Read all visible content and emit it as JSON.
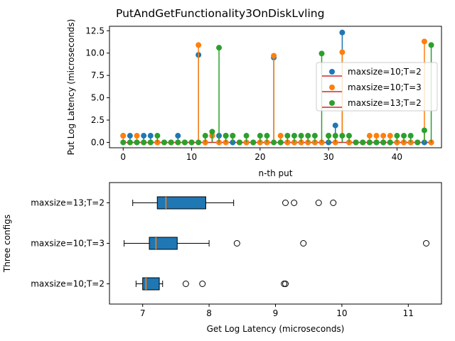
{
  "figure": {
    "title": "PutAndGetFunctionality3OnDiskLvling"
  },
  "colors": {
    "series": [
      "#1f77b4",
      "#ff7f0e",
      "#2ca02c"
    ],
    "baseline": "#d62728",
    "box_face": "#1f77b4",
    "median": "#ff7f0e"
  },
  "chart_data": [
    {
      "type": "stem",
      "xlabel": "n-th put",
      "ylabel": "Put Log Latency (microseconds)",
      "xlim": [
        -2,
        46.5
      ],
      "ylim": [
        -0.6,
        13.0
      ],
      "xticks": [
        0,
        10,
        20,
        30,
        40
      ],
      "yticks": [
        0.0,
        2.5,
        5.0,
        7.5,
        10.0,
        12.5
      ],
      "legend_position": "center-right",
      "x": [
        0,
        1,
        2,
        3,
        4,
        5,
        6,
        7,
        8,
        9,
        10,
        11,
        12,
        13,
        14,
        15,
        16,
        17,
        18,
        19,
        20,
        21,
        22,
        23,
        24,
        25,
        26,
        27,
        28,
        29,
        30,
        31,
        32,
        33,
        34,
        35,
        36,
        37,
        38,
        39,
        40,
        41,
        42,
        43,
        44,
        45
      ],
      "series": [
        {
          "name": "maxsize=10;T=2",
          "values": [
            0.75,
            0.75,
            0.0,
            0.75,
            0.75,
            0.0,
            0.0,
            0.0,
            0.75,
            0.0,
            0.0,
            9.8,
            0.0,
            0.75,
            0.75,
            0.75,
            0.0,
            0.0,
            0.0,
            0.0,
            0.0,
            0.0,
            9.5,
            0.0,
            0.0,
            0.0,
            0.0,
            0.0,
            0.0,
            0.0,
            0.0,
            1.9,
            12.3,
            0.0,
            0.0,
            0.0,
            0.0,
            0.0,
            0.0,
            0.0,
            0.0,
            0.0,
            0.0,
            0.0,
            0.0,
            0.0
          ]
        },
        {
          "name": "maxsize=10;T=3",
          "values": [
            0.75,
            0.0,
            0.75,
            0.0,
            0.0,
            0.0,
            0.0,
            0.0,
            0.0,
            0.0,
            0.0,
            10.9,
            0.0,
            0.75,
            0.0,
            0.0,
            0.75,
            0.0,
            0.0,
            0.0,
            0.0,
            0.0,
            9.7,
            0.75,
            0.0,
            0.0,
            0.0,
            0.0,
            0.0,
            0.0,
            0.75,
            0.0,
            10.1,
            0.0,
            0.0,
            0.0,
            0.75,
            0.75,
            0.75,
            0.75,
            0.0,
            0.0,
            0.0,
            0.0,
            11.3,
            0.0
          ]
        },
        {
          "name": "maxsize=13;T=2",
          "values": [
            0.0,
            0.0,
            0.0,
            0.0,
            0.0,
            0.75,
            0.0,
            0.0,
            0.0,
            0.0,
            0.0,
            0.0,
            0.75,
            1.2,
            10.6,
            0.75,
            0.75,
            0.0,
            0.75,
            0.0,
            0.75,
            0.75,
            0.0,
            0.0,
            0.75,
            0.75,
            0.75,
            0.75,
            0.75,
            9.95,
            0.75,
            0.75,
            0.75,
            0.75,
            0.0,
            0.0,
            0.0,
            0.0,
            0.0,
            0.0,
            0.75,
            0.75,
            0.75,
            0.0,
            1.35,
            10.9
          ]
        }
      ]
    },
    {
      "type": "boxplot",
      "orientation": "horizontal",
      "xlabel": "Get Log Latency (microseconds)",
      "ylabel": "Three configs",
      "xlim": [
        6.5,
        11.5
      ],
      "xticks": [
        7,
        8,
        9,
        10,
        11
      ],
      "categories": [
        "maxsize=10;T=2",
        "maxsize=10;T=3",
        "maxsize=13;T=2"
      ],
      "boxes": [
        {
          "whisker_low": 6.9,
          "q1": 7.0,
          "median": 7.05,
          "q3": 7.25,
          "whisker_high": 7.3,
          "fliers": [
            7.65,
            7.9,
            9.13,
            9.15
          ]
        },
        {
          "whisker_low": 6.72,
          "q1": 7.1,
          "median": 7.2,
          "q3": 7.52,
          "whisker_high": 8.0,
          "fliers": [
            8.42,
            9.42,
            11.27
          ]
        },
        {
          "whisker_low": 6.85,
          "q1": 7.22,
          "median": 7.35,
          "q3": 7.95,
          "whisker_high": 8.37,
          "fliers": [
            9.15,
            9.28,
            9.65,
            9.87
          ]
        }
      ]
    }
  ]
}
